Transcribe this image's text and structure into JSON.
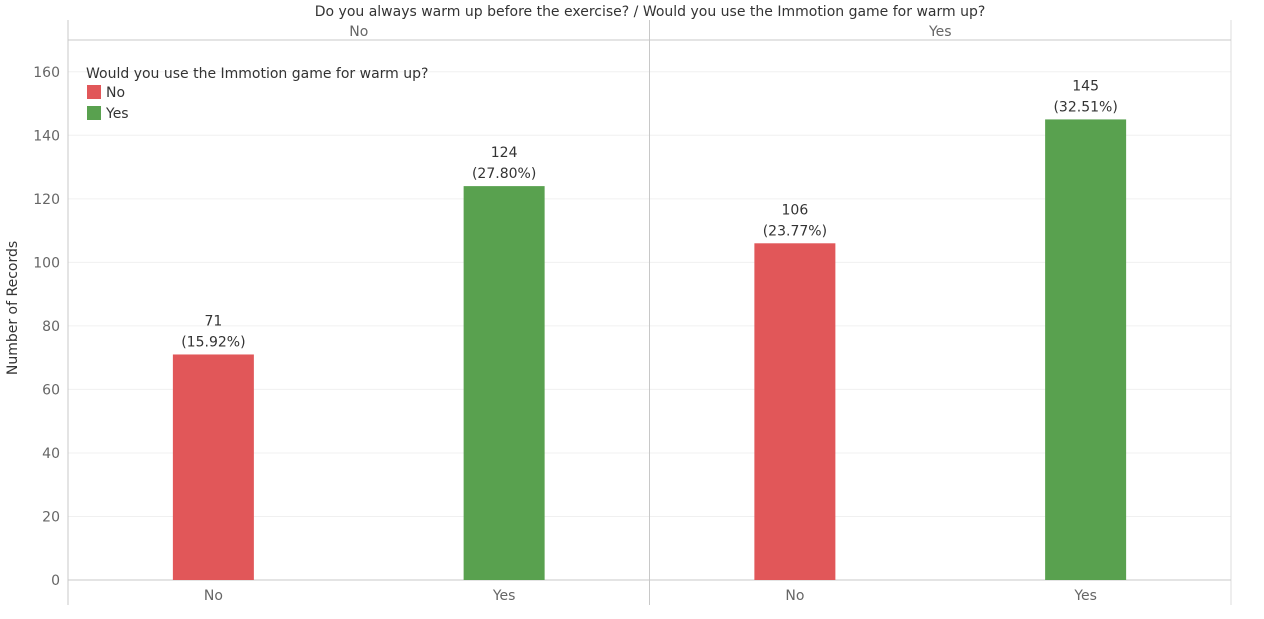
{
  "chart_data": {
    "type": "bar",
    "title": "Do you always warm up before the exercise?  /  Would you use the Immotion game for warm up?",
    "ylabel": "Number of Records",
    "ylim": [
      0,
      170
    ],
    "yticks": [
      0,
      20,
      40,
      60,
      80,
      100,
      120,
      140,
      160
    ],
    "grid": true,
    "panels": [
      {
        "header": "No",
        "categories": [
          "No",
          "Yes"
        ],
        "values": [
          71,
          124
        ],
        "labels": [
          "(15.92%)",
          "(27.80%)"
        ]
      },
      {
        "header": "Yes",
        "categories": [
          "No",
          "Yes"
        ],
        "values": [
          106,
          145
        ],
        "labels": [
          "(23.77%)",
          "(32.51%)"
        ]
      }
    ],
    "legend": {
      "title": "Would you use the Immotion game for warm up?",
      "position": "top-left",
      "items": [
        {
          "label": "No",
          "color": "#e15759"
        },
        {
          "label": "Yes",
          "color": "#59a14f"
        }
      ]
    }
  }
}
